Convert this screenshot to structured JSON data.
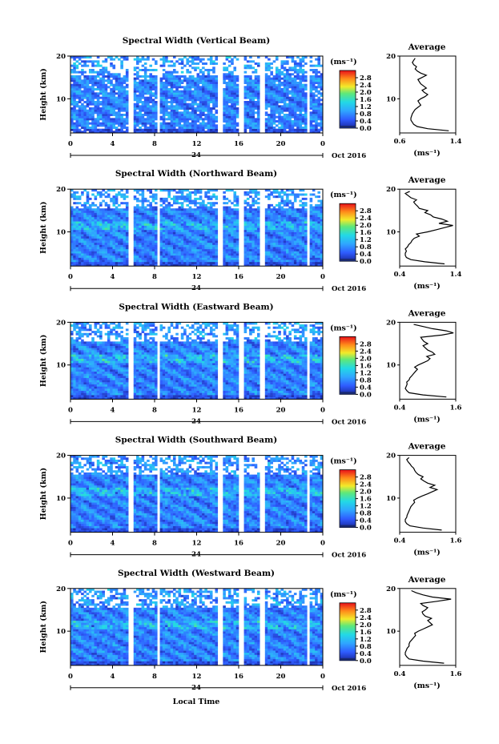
{
  "figure": {
    "xlabel": "Local Time",
    "date_label": "Oct 2016",
    "colorbar_unit": "(ms⁻¹)",
    "avg_title": "Average",
    "avg_xlabel": "(ms⁻¹)",
    "ylabel": "Height (km)",
    "day_marker": "24"
  },
  "chart_data": [
    {
      "type": "heatmap",
      "title": "Spectral Width (Vertical Beam)",
      "xlabel": "",
      "ylabel": "Height (km)",
      "xlim": [
        0,
        24
      ],
      "ylim": [
        2,
        20
      ],
      "xticks": [
        "0",
        "4",
        "8",
        "12",
        "16",
        "20",
        "0"
      ],
      "yticks": [
        "10",
        "20"
      ],
      "colorbar": {
        "label": "(ms⁻¹)",
        "range": [
          0.0,
          3.2
        ],
        "ticks": [
          "0.0",
          "0.4",
          "0.8",
          "1.2",
          "1.6",
          "2.0",
          "2.4",
          "2.8"
        ]
      },
      "profile": {
        "title": "Average",
        "xlabel": "(ms⁻¹)",
        "xlim": [
          0.6,
          1.4
        ],
        "xticks": [
          "0.6",
          "1.4"
        ],
        "ylim": [
          2,
          20
        ],
        "yticks": [
          "10",
          "20"
        ],
        "height": [
          2.5,
          3,
          3.5,
          4,
          4.5,
          5,
          5.5,
          6,
          6.5,
          7,
          7.5,
          8,
          8.5,
          9,
          9.5,
          10,
          10.5,
          11,
          11.5,
          12,
          12.5,
          13,
          13.5,
          14,
          14.5,
          15,
          15.5,
          16,
          16.5,
          17,
          17.5,
          18,
          18.5,
          19,
          19.5
        ],
        "value": [
          1.3,
          1.0,
          0.85,
          0.8,
          0.78,
          0.76,
          0.76,
          0.77,
          0.78,
          0.8,
          0.82,
          0.86,
          0.9,
          0.88,
          0.86,
          0.9,
          0.96,
          1.0,
          0.95,
          0.92,
          0.98,
          0.94,
          0.9,
          0.88,
          0.86,
          0.92,
          0.98,
          0.9,
          0.85,
          0.82,
          0.84,
          0.8,
          0.78,
          0.8,
          0.82
        ]
      }
    },
    {
      "type": "heatmap",
      "title": "Spectral Width (Northward Beam)",
      "xlabel": "",
      "ylabel": "Height (km)",
      "xlim": [
        0,
        24
      ],
      "ylim": [
        2,
        20
      ],
      "xticks": [
        "0",
        "4",
        "8",
        "12",
        "16",
        "20",
        "0"
      ],
      "yticks": [
        "10",
        "20"
      ],
      "colorbar": {
        "label": "(ms⁻¹)",
        "range": [
          0.0,
          3.2
        ],
        "ticks": [
          "0.0",
          "0.4",
          "0.8",
          "1.2",
          "1.6",
          "2.0",
          "2.4",
          "2.8"
        ]
      },
      "profile": {
        "title": "Average",
        "xlabel": "(ms⁻¹)",
        "xlim": [
          0.4,
          1.4
        ],
        "xticks": [
          "0.4",
          "1.4"
        ],
        "ylim": [
          2,
          20
        ],
        "yticks": [
          "10",
          "20"
        ],
        "height": [
          2.5,
          3,
          3.5,
          4,
          4.5,
          5,
          5.5,
          6,
          6.5,
          7,
          7.5,
          8,
          8.5,
          9,
          9.5,
          10,
          10.5,
          11,
          11.5,
          12,
          12.5,
          13,
          13.5,
          14,
          14.5,
          15,
          15.5,
          16,
          16.5,
          17,
          17.5,
          18,
          18.5,
          19,
          19.5
        ],
        "value": [
          1.2,
          0.85,
          0.6,
          0.52,
          0.5,
          0.5,
          0.52,
          0.5,
          0.54,
          0.56,
          0.6,
          0.62,
          0.66,
          0.75,
          0.7,
          0.9,
          1.05,
          1.2,
          1.35,
          1.1,
          1.25,
          1.15,
          1.0,
          0.95,
          0.85,
          0.9,
          0.75,
          0.72,
          0.68,
          0.65,
          0.7,
          0.6,
          0.55,
          0.5,
          0.58
        ]
      }
    },
    {
      "type": "heatmap",
      "title": "Spectral Width (Eastward Beam)",
      "xlabel": "",
      "ylabel": "Height (km)",
      "xlim": [
        0,
        24
      ],
      "ylim": [
        2,
        20
      ],
      "xticks": [
        "0",
        "4",
        "8",
        "12",
        "16",
        "20",
        "0"
      ],
      "yticks": [
        "10",
        "20"
      ],
      "colorbar": {
        "label": "(ms⁻¹)",
        "range": [
          0.0,
          3.2
        ],
        "ticks": [
          "0.0",
          "0.4",
          "0.8",
          "1.2",
          "1.6",
          "2.0",
          "2.4",
          "2.8"
        ]
      },
      "profile": {
        "title": "Average",
        "xlabel": "(ms⁻¹)",
        "xlim": [
          0.4,
          1.6
        ],
        "xticks": [
          "0.4",
          "1.6"
        ],
        "ylim": [
          2,
          20
        ],
        "yticks": [
          "10",
          "20"
        ],
        "height": [
          2.5,
          3,
          3.5,
          4,
          4.5,
          5,
          5.5,
          6,
          6.5,
          7,
          7.5,
          8,
          8.5,
          9,
          9.5,
          10,
          10.5,
          11,
          11.5,
          12,
          12.5,
          13,
          13.5,
          14,
          14.5,
          15,
          15.5,
          16,
          16.5,
          17,
          17.5,
          18,
          18.5,
          19,
          19.5
        ],
        "value": [
          1.4,
          0.9,
          0.6,
          0.55,
          0.52,
          0.54,
          0.56,
          0.55,
          0.6,
          0.62,
          0.66,
          0.7,
          0.74,
          0.78,
          0.72,
          0.8,
          0.9,
          1.0,
          1.05,
          0.98,
          1.15,
          1.1,
          1.0,
          0.95,
          0.9,
          1.0,
          0.92,
          0.88,
          0.85,
          1.3,
          1.55,
          1.4,
          1.1,
          0.9,
          0.7
        ]
      }
    },
    {
      "type": "heatmap",
      "title": "Spectral Width (Southward Beam)",
      "xlabel": "",
      "ylabel": "Height (km)",
      "xlim": [
        0,
        24
      ],
      "ylim": [
        2,
        20
      ],
      "xticks": [
        "0",
        "4",
        "8",
        "12",
        "16",
        "20",
        "0"
      ],
      "yticks": [
        "10",
        "20"
      ],
      "colorbar": {
        "label": "(ms⁻¹)",
        "range": [
          0.0,
          3.2
        ],
        "ticks": [
          "0.0",
          "0.4",
          "0.8",
          "1.2",
          "1.6",
          "2.0",
          "2.4",
          "2.8"
        ]
      },
      "profile": {
        "title": "Average",
        "xlabel": "(ms⁻¹)",
        "xlim": [
          0.4,
          1.6
        ],
        "xticks": [
          "0.4",
          "1.6"
        ],
        "ylim": [
          2,
          20
        ],
        "yticks": [
          "10",
          "20"
        ],
        "height": [
          2.5,
          3,
          3.5,
          4,
          4.5,
          5,
          5.5,
          6,
          6.5,
          7,
          7.5,
          8,
          8.5,
          9,
          9.5,
          10,
          10.5,
          11,
          11.5,
          12,
          12.5,
          13,
          13.5,
          14,
          14.5,
          15,
          15.5,
          16,
          16.5,
          17,
          17.5,
          18,
          18.5,
          19,
          19.5
        ],
        "value": [
          1.3,
          0.9,
          0.62,
          0.55,
          0.52,
          0.52,
          0.55,
          0.56,
          0.58,
          0.6,
          0.62,
          0.64,
          0.68,
          0.72,
          0.7,
          0.78,
          0.88,
          1.0,
          1.1,
          1.2,
          1.05,
          1.15,
          1.0,
          0.92,
          0.85,
          0.9,
          0.8,
          0.75,
          0.72,
          0.7,
          0.65,
          0.62,
          0.58,
          0.55,
          0.6
        ]
      }
    },
    {
      "type": "heatmap",
      "title": "Spectral Width (Westward Beam)",
      "xlabel": "Local Time",
      "ylabel": "Height (km)",
      "xlim": [
        0,
        24
      ],
      "ylim": [
        2,
        20
      ],
      "xticks": [
        "0",
        "4",
        "8",
        "12",
        "16",
        "20",
        "0"
      ],
      "yticks": [
        "10",
        "20"
      ],
      "colorbar": {
        "label": "(ms⁻¹)",
        "range": [
          0.0,
          3.2
        ],
        "ticks": [
          "0.0",
          "0.4",
          "0.8",
          "1.2",
          "1.6",
          "2.0",
          "2.4",
          "2.8"
        ]
      },
      "profile": {
        "title": "Average",
        "xlabel": "(ms⁻¹)",
        "xlim": [
          0.4,
          1.6
        ],
        "xticks": [
          "0.4",
          "1.6"
        ],
        "ylim": [
          2,
          20
        ],
        "yticks": [
          "10",
          "20"
        ],
        "height": [
          2.5,
          3,
          3.5,
          4,
          4.5,
          5,
          5.5,
          6,
          6.5,
          7,
          7.5,
          8,
          8.5,
          9,
          9.5,
          10,
          10.5,
          11,
          11.5,
          12,
          12.5,
          13,
          13.5,
          14,
          14.5,
          15,
          15.5,
          16,
          16.5,
          17,
          17.5,
          18,
          18.5,
          19,
          19.5
        ],
        "value": [
          1.35,
          0.9,
          0.6,
          0.55,
          0.52,
          0.52,
          0.54,
          0.56,
          0.6,
          0.6,
          0.62,
          0.66,
          0.7,
          0.74,
          0.72,
          0.8,
          0.9,
          1.0,
          1.1,
          1.05,
          1.0,
          1.08,
          0.95,
          0.9,
          0.88,
          0.95,
          1.0,
          0.9,
          0.85,
          1.2,
          1.5,
          1.1,
          0.9,
          0.75,
          0.65
        ]
      }
    }
  ]
}
